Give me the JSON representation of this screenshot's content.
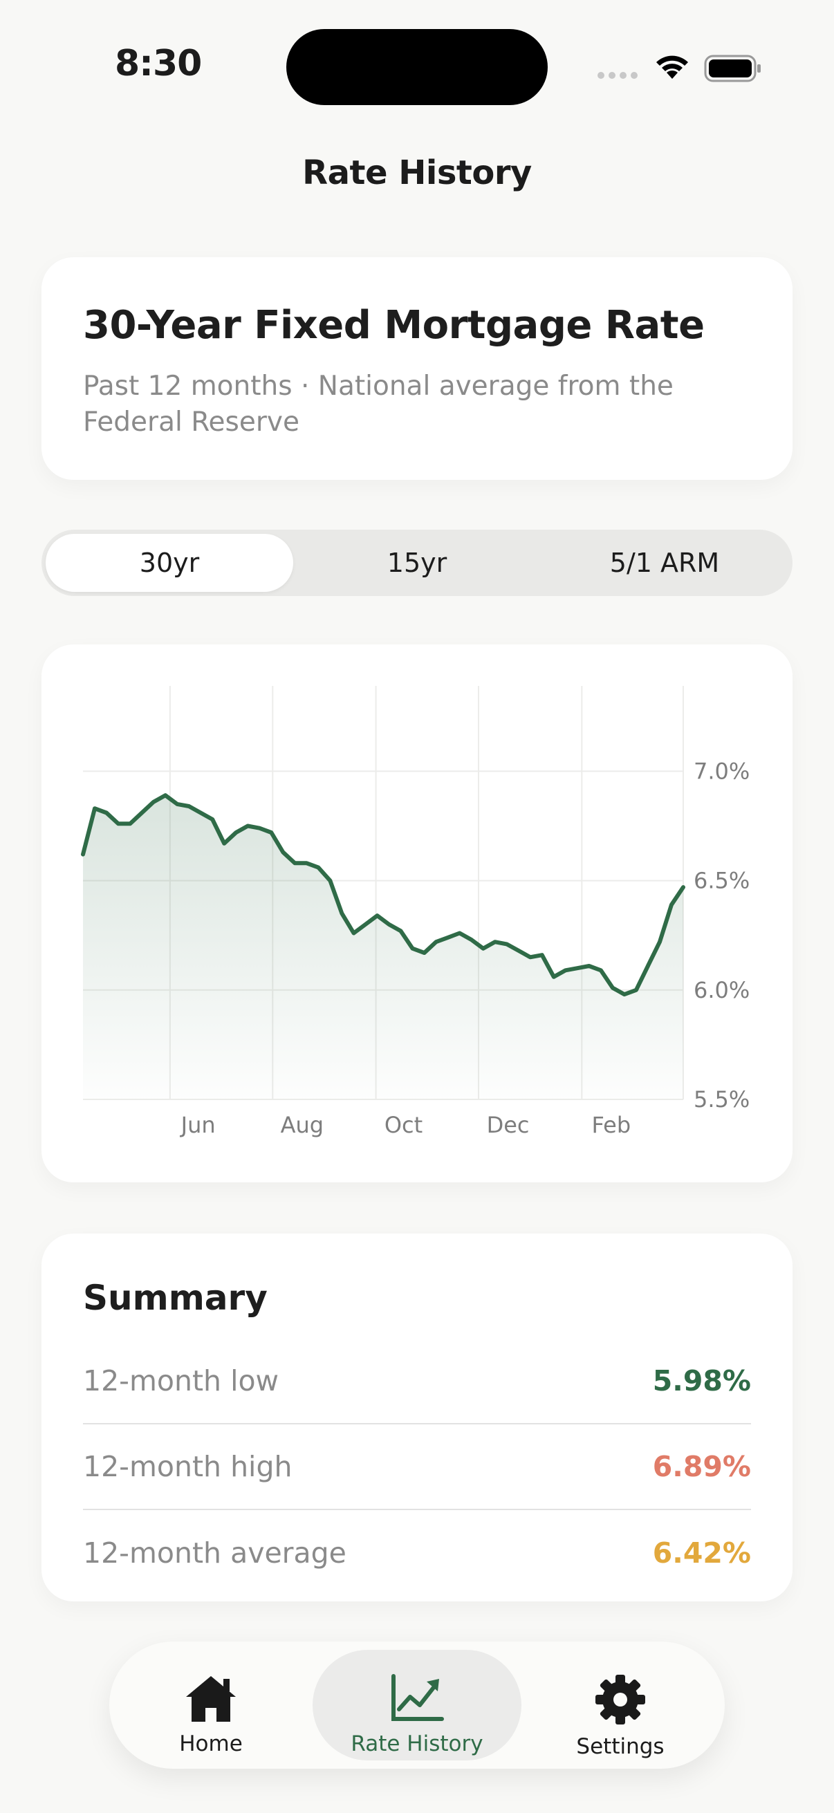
{
  "status_bar": {
    "time": "8:30"
  },
  "page": {
    "title": "Rate History"
  },
  "hero": {
    "title": "30-Year Fixed Mortgage Rate",
    "subtitle": "Past 12 months · National average from the Federal Reserve"
  },
  "segments": [
    {
      "label": "30yr",
      "active": true
    },
    {
      "label": "15yr",
      "active": false
    },
    {
      "label": "5/1 ARM",
      "active": false
    }
  ],
  "chart_data": {
    "type": "area",
    "title": "",
    "xlabel": "",
    "ylabel": "",
    "y_tick_labels": [
      "7.0%",
      "6.5%",
      "6.0%",
      "5.5%"
    ],
    "y_ticks": [
      7.0,
      6.5,
      6.0,
      5.5
    ],
    "ylim": [
      5.5,
      7.39
    ],
    "x_tick_labels": [
      "Jun",
      "Aug",
      "Oct",
      "Dec",
      "Feb"
    ],
    "grid": true,
    "y_axis_position": "right",
    "color": "#2f6b47",
    "series": [
      {
        "values": [
          6.62,
          6.83,
          6.81,
          6.76,
          6.76,
          6.81,
          6.86,
          6.89,
          6.85,
          6.84,
          6.81,
          6.78,
          6.67,
          6.72,
          6.75,
          6.74,
          6.72,
          6.63,
          6.58,
          6.58,
          6.56,
          6.5,
          6.35,
          6.26,
          6.3,
          6.34,
          6.3,
          6.27,
          6.19,
          6.17,
          6.22,
          6.24,
          6.26,
          6.23,
          6.19,
          6.22,
          6.21,
          6.18,
          6.15,
          6.16,
          6.06,
          6.09,
          6.1,
          6.11,
          6.09,
          6.01,
          5.98,
          6.0,
          6.11,
          6.22,
          6.39,
          6.47
        ]
      }
    ]
  },
  "summary": {
    "title": "Summary",
    "rows": [
      {
        "label": "12-month low",
        "value": "5.98%",
        "color": "#2f6b47"
      },
      {
        "label": "12-month high",
        "value": "6.89%",
        "color": "#e07b67"
      },
      {
        "label": "12-month average",
        "value": "6.42%",
        "color": "#e2a83c"
      }
    ]
  },
  "tabbar": {
    "items": [
      {
        "label": "Home",
        "icon": "house-icon",
        "active": false
      },
      {
        "label": "Rate History",
        "icon": "chart-trend-icon",
        "active": true
      },
      {
        "label": "Settings",
        "icon": "gear-icon",
        "active": false
      }
    ]
  },
  "colors": {
    "accent": "#2f6b47",
    "background": "#f8f8f6",
    "card": "#ffffff"
  }
}
